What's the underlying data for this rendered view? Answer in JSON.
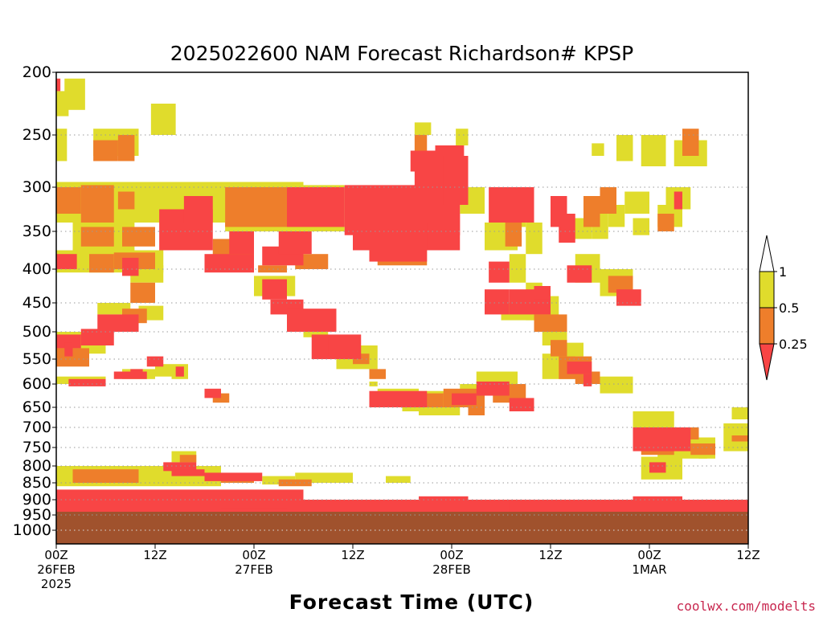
{
  "credit": "coolwx.com/modelts",
  "chart_data": {
    "type": "heatmap",
    "title": "2025022600 NAM Forecast Richardson# KPSP",
    "xlabel": "Forecast Time (UTC)",
    "ylabel": "",
    "y_axis": {
      "reversed": true,
      "ticks": [
        200,
        250,
        300,
        350,
        400,
        450,
        500,
        550,
        600,
        650,
        700,
        750,
        800,
        850,
        900,
        950,
        1000
      ],
      "range": [
        200,
        1025
      ]
    },
    "x_axis": {
      "range_hours": [
        0,
        84
      ],
      "ticks": [
        {
          "hour": 0,
          "lines": [
            "00Z",
            "26FEB",
            "2025"
          ]
        },
        {
          "hour": 12,
          "lines": [
            "12Z"
          ]
        },
        {
          "hour": 24,
          "lines": [
            "00Z",
            "27FEB"
          ]
        },
        {
          "hour": 36,
          "lines": [
            "12Z"
          ]
        },
        {
          "hour": 48,
          "lines": [
            "00Z",
            "28FEB"
          ]
        },
        {
          "hour": 60,
          "lines": [
            "12Z"
          ]
        },
        {
          "hour": 72,
          "lines": [
            "00Z",
            "1MAR"
          ]
        },
        {
          "hour": 84,
          "lines": [
            "12Z"
          ]
        }
      ]
    },
    "grid": "dotted horizontal lines at pressure ticks",
    "legend": {
      "placement": "right",
      "labels": [
        "1",
        "0.5",
        "0.25"
      ],
      "colors": {
        "0.5-1": "#e0dc2c",
        "0.25-0.5": "#ee7e2b",
        "<0.25": "#f84545"
      }
    },
    "colors": {
      "low": "#f84545",
      "mid": "#ee7e2b",
      "high": "#e0dc2c",
      "ground": "#a0522d"
    },
    "ground_pressure": 950,
    "cells": [
      [
        0,
        215,
        1.5,
        235,
        "high"
      ],
      [
        0,
        205,
        0.5,
        215,
        "low"
      ],
      [
        1,
        205,
        3.5,
        230,
        "high"
      ],
      [
        11.5,
        225,
        14.5,
        250,
        "high"
      ],
      [
        0,
        245,
        1.3,
        275,
        "high"
      ],
      [
        4.5,
        245,
        10,
        270,
        "high"
      ],
      [
        4.5,
        255,
        7.5,
        275,
        "mid"
      ],
      [
        7.5,
        250,
        9.5,
        275,
        "mid"
      ],
      [
        0,
        295,
        30,
        340,
        "high"
      ],
      [
        0,
        300,
        3,
        330,
        "mid"
      ],
      [
        3,
        298,
        7,
        340,
        "mid"
      ],
      [
        7.5,
        305,
        9.5,
        325,
        "mid"
      ],
      [
        2,
        335,
        9.5,
        375,
        "high"
      ],
      [
        3,
        345,
        7,
        370,
        "mid"
      ],
      [
        8,
        345,
        12,
        370,
        "mid"
      ],
      [
        12.5,
        325,
        19,
        375,
        "low"
      ],
      [
        15.5,
        310,
        19,
        340,
        "low"
      ],
      [
        0,
        375,
        13,
        405,
        "high"
      ],
      [
        0,
        380,
        2.5,
        400,
        "low"
      ],
      [
        4,
        380,
        7,
        405,
        "mid"
      ],
      [
        7,
        378,
        12,
        400,
        "mid"
      ],
      [
        9,
        395,
        13,
        420,
        "high"
      ],
      [
        20.5,
        298,
        35,
        350,
        "high"
      ],
      [
        20.5,
        300,
        28,
        345,
        "mid"
      ],
      [
        28,
        300,
        35,
        345,
        "low"
      ],
      [
        19,
        360,
        24,
        385,
        "mid"
      ],
      [
        21,
        350,
        24,
        380,
        "low"
      ],
      [
        25,
        370,
        30,
        395,
        "low"
      ],
      [
        27,
        350,
        31,
        380,
        "low"
      ],
      [
        24.5,
        395,
        28,
        405,
        "mid"
      ],
      [
        18,
        380,
        24,
        405,
        "low"
      ],
      [
        29,
        380,
        33,
        400,
        "mid"
      ],
      [
        24,
        410,
        29,
        440,
        "high"
      ],
      [
        25,
        415,
        28,
        445,
        "low"
      ],
      [
        26,
        445,
        30,
        470,
        "low"
      ],
      [
        28,
        460,
        34,
        500,
        "low"
      ],
      [
        30,
        470,
        33,
        510,
        "high"
      ],
      [
        35,
        298,
        49,
        355,
        "low"
      ],
      [
        36,
        330,
        49,
        375,
        "low"
      ],
      [
        38,
        340,
        45,
        390,
        "low"
      ],
      [
        42,
        310,
        45,
        345,
        "mid"
      ],
      [
        39,
        355,
        45,
        395,
        "mid"
      ],
      [
        43.5,
        280,
        49,
        300,
        "low"
      ],
      [
        44.5,
        275,
        48.5,
        290,
        "high"
      ],
      [
        43,
        265,
        48,
        285,
        "low"
      ],
      [
        46,
        260,
        49.5,
        290,
        "low"
      ],
      [
        47,
        270,
        50,
        320,
        "low"
      ],
      [
        43.5,
        250,
        45,
        265,
        "mid"
      ],
      [
        43.5,
        240,
        45.5,
        250,
        "high"
      ],
      [
        49,
        300,
        52,
        330,
        "high"
      ],
      [
        52.5,
        300,
        58,
        340,
        "low"
      ],
      [
        52,
        340,
        56,
        375,
        "high"
      ],
      [
        54.5,
        340,
        56.5,
        370,
        "mid"
      ],
      [
        57,
        340,
        59,
        380,
        "high"
      ],
      [
        52.5,
        390,
        55,
        420,
        "low"
      ],
      [
        54,
        320,
        57,
        345,
        "high"
      ],
      [
        48.5,
        245,
        50,
        260,
        "high"
      ],
      [
        0,
        500,
        6,
        540,
        "high"
      ],
      [
        0,
        505,
        3,
        530,
        "low"
      ],
      [
        3,
        495,
        7,
        525,
        "low"
      ],
      [
        5,
        470,
        10,
        500,
        "low"
      ],
      [
        5,
        450,
        9,
        470,
        "high"
      ],
      [
        8,
        460,
        11,
        485,
        "mid"
      ],
      [
        9,
        420,
        12,
        450,
        "mid"
      ],
      [
        10,
        455,
        13,
        480,
        "high"
      ],
      [
        0,
        530,
        4,
        565,
        "mid"
      ],
      [
        1,
        520,
        2,
        545,
        "low"
      ],
      [
        0,
        585,
        6,
        600,
        "high"
      ],
      [
        1.5,
        590,
        6,
        605,
        "low"
      ],
      [
        7,
        575,
        11,
        590,
        "low"
      ],
      [
        8,
        570,
        12,
        590,
        "high"
      ],
      [
        9,
        570,
        10.5,
        580,
        "low"
      ],
      [
        31,
        505,
        37,
        550,
        "low"
      ],
      [
        33,
        510,
        36,
        545,
        "low"
      ],
      [
        36,
        540,
        38,
        560,
        "mid"
      ],
      [
        34,
        525,
        39,
        570,
        "high"
      ],
      [
        38,
        570,
        40,
        590,
        "mid"
      ],
      [
        38,
        595,
        39,
        605,
        "high"
      ],
      [
        38,
        615,
        45,
        650,
        "low"
      ],
      [
        39,
        610,
        44,
        640,
        "high"
      ],
      [
        42,
        615,
        48,
        660,
        "high"
      ],
      [
        43,
        620,
        47,
        650,
        "mid"
      ],
      [
        47,
        610,
        52,
        650,
        "mid"
      ],
      [
        48,
        620,
        51,
        645,
        "low"
      ],
      [
        49,
        600,
        52,
        640,
        "high"
      ],
      [
        51,
        595,
        55,
        625,
        "low"
      ],
      [
        52,
        590,
        54,
        610,
        "high"
      ],
      [
        44,
        650,
        49,
        670,
        "high"
      ],
      [
        50,
        650,
        52,
        670,
        "mid"
      ],
      [
        52,
        430,
        55,
        470,
        "low"
      ],
      [
        54,
        450,
        58,
        480,
        "high"
      ],
      [
        55,
        430,
        60,
        470,
        "low"
      ],
      [
        57,
        440,
        61,
        480,
        "high"
      ],
      [
        58,
        470,
        62,
        500,
        "mid"
      ],
      [
        59,
        500,
        62,
        525,
        "high"
      ],
      [
        60,
        515,
        62,
        545,
        "mid"
      ],
      [
        62,
        520,
        64,
        545,
        "high"
      ],
      [
        59,
        540,
        63,
        590,
        "high"
      ],
      [
        61,
        545,
        65,
        590,
        "mid"
      ],
      [
        62,
        555,
        65,
        580,
        "low"
      ],
      [
        63,
        575,
        66,
        600,
        "mid"
      ],
      [
        64,
        580,
        65,
        605,
        "low"
      ],
      [
        66,
        585,
        70,
        620,
        "high"
      ],
      [
        51,
        575,
        56,
        620,
        "high"
      ],
      [
        53,
        600,
        57,
        640,
        "mid"
      ],
      [
        55,
        630,
        58,
        660,
        "low"
      ],
      [
        57,
        420,
        59,
        440,
        "high"
      ],
      [
        58,
        425,
        60,
        445,
        "low"
      ],
      [
        60,
        310,
        62,
        345,
        "low"
      ],
      [
        61,
        330,
        63,
        365,
        "low"
      ],
      [
        62,
        335,
        65,
        360,
        "high"
      ],
      [
        64,
        310,
        66,
        345,
        "mid"
      ],
      [
        65,
        330,
        67,
        360,
        "high"
      ],
      [
        66,
        300,
        68,
        330,
        "mid"
      ],
      [
        67,
        320,
        69,
        345,
        "high"
      ],
      [
        69,
        305,
        72,
        330,
        "high"
      ],
      [
        70,
        335,
        72,
        355,
        "high"
      ],
      [
        73,
        320,
        76,
        345,
        "high"
      ],
      [
        73,
        330,
        75,
        350,
        "mid"
      ],
      [
        74,
        300,
        77,
        325,
        "high"
      ],
      [
        75,
        305,
        76,
        325,
        "low"
      ],
      [
        68,
        250,
        70,
        275,
        "high"
      ],
      [
        65,
        258,
        66.5,
        270,
        "high"
      ],
      [
        71,
        250,
        74,
        280,
        "high"
      ],
      [
        75,
        255,
        79,
        280,
        "high"
      ],
      [
        76,
        245,
        78,
        270,
        "mid"
      ],
      [
        62,
        395,
        65,
        420,
        "low"
      ],
      [
        63,
        380,
        66,
        420,
        "high"
      ],
      [
        66,
        400,
        70,
        440,
        "high"
      ],
      [
        67,
        410,
        70,
        435,
        "mid"
      ],
      [
        68,
        430,
        71,
        455,
        "low"
      ],
      [
        55,
        380,
        57,
        420,
        "high"
      ],
      [
        14,
        560,
        16,
        590,
        "high"
      ],
      [
        14.5,
        565,
        15.5,
        585,
        "low"
      ],
      [
        9.5,
        375,
        11,
        390,
        "high"
      ],
      [
        8,
        385,
        10,
        410,
        "low"
      ],
      [
        18,
        610,
        20,
        630,
        "low"
      ],
      [
        19,
        620,
        21,
        640,
        "mid"
      ],
      [
        11,
        545,
        13,
        565,
        "low"
      ],
      [
        12,
        560,
        14,
        585,
        "high"
      ],
      [
        70,
        660,
        75,
        720,
        "high"
      ],
      [
        70,
        700,
        77,
        760,
        "low"
      ],
      [
        71,
        720,
        75,
        770,
        "mid"
      ],
      [
        73,
        730,
        79,
        780,
        "high"
      ],
      [
        76,
        725,
        80,
        760,
        "high"
      ],
      [
        76,
        700,
        78,
        730,
        "mid"
      ],
      [
        71,
        775,
        76,
        840,
        "high"
      ],
      [
        72,
        790,
        74,
        820,
        "low"
      ],
      [
        77,
        740,
        80,
        770,
        "mid"
      ],
      [
        78,
        760,
        80,
        780,
        "high"
      ],
      [
        81,
        690,
        84,
        760,
        "high"
      ],
      [
        82,
        720,
        84,
        735,
        "mid"
      ],
      [
        82,
        650,
        84,
        680,
        "high"
      ],
      [
        0,
        800,
        20,
        860,
        "high"
      ],
      [
        2,
        810,
        10,
        850,
        "mid"
      ],
      [
        10,
        800,
        16,
        840,
        "high"
      ],
      [
        13,
        790,
        17,
        815,
        "low"
      ],
      [
        14,
        760,
        17,
        790,
        "high"
      ],
      [
        15,
        770,
        17,
        790,
        "mid"
      ],
      [
        14,
        810,
        18,
        830,
        "low"
      ],
      [
        18,
        820,
        25,
        845,
        "low"
      ],
      [
        20,
        830,
        24,
        850,
        "mid"
      ],
      [
        25,
        830,
        29,
        855,
        "high"
      ],
      [
        27,
        840,
        31,
        860,
        "mid"
      ],
      [
        29,
        820,
        36,
        850,
        "high"
      ],
      [
        40,
        830,
        43,
        850,
        "high"
      ],
      [
        0,
        870,
        30,
        930,
        "low"
      ],
      [
        0,
        900,
        84,
        945,
        "low"
      ],
      [
        6,
        910,
        20,
        935,
        "high"
      ],
      [
        20,
        895,
        28,
        930,
        "low"
      ],
      [
        40,
        900,
        55,
        940,
        "low"
      ],
      [
        44,
        890,
        50,
        920,
        "low"
      ],
      [
        55,
        910,
        70,
        935,
        "high"
      ],
      [
        70,
        890,
        76,
        940,
        "low"
      ],
      [
        66,
        915,
        70,
        935,
        "mid"
      ],
      [
        76,
        915,
        84,
        940,
        "high"
      ]
    ]
  }
}
